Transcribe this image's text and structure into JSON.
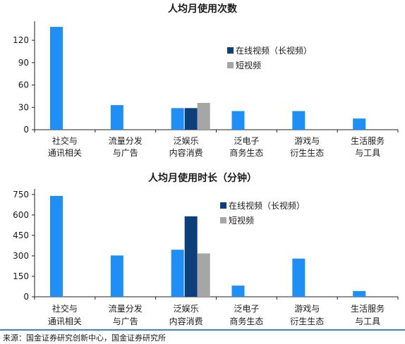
{
  "colors": {
    "primary": "#1f8ff5",
    "online_video": "#0d3f7a",
    "short_video": "#a6a6a6",
    "axis": "#222222",
    "source_rule": "#3a86c8"
  },
  "source": "来源：国金证券研究创新中心，国金证券研究所",
  "chart_data": [
    {
      "type": "bar",
      "title": "人均月使用次数",
      "categories": [
        [
          "社交与",
          "通讯相关"
        ],
        [
          "流量分发",
          "与广告"
        ],
        [
          "泛娱乐",
          "内容消费"
        ],
        [
          "泛电子",
          "商务生态"
        ],
        [
          "游戏与",
          "衍生生态"
        ],
        [
          "生活服务",
          "与工具"
        ]
      ],
      "yticks": [
        0,
        30,
        60,
        90,
        120
      ],
      "ylim": [
        0,
        140
      ],
      "series": [
        {
          "values": [
            138,
            33,
            29,
            25,
            25,
            15
          ]
        },
        {
          "name": "在线视频（长视频）",
          "category_index": 2,
          "value": 29
        },
        {
          "name": "短视频",
          "category_index": 2,
          "value": 36
        }
      ]
    },
    {
      "type": "bar",
      "title": "人均月使用时长（分钟）",
      "categories": [
        [
          "社交与",
          "通讯相关"
        ],
        [
          "流量分发",
          "与广告"
        ],
        [
          "泛娱乐",
          "内容消费"
        ],
        [
          "泛电子",
          "商务生态"
        ],
        [
          "游戏与",
          "衍生生态"
        ],
        [
          "生活服务",
          "与工具"
        ]
      ],
      "yticks": [
        0,
        150,
        300,
        450,
        600,
        750
      ],
      "ylim": [
        0,
        760
      ],
      "series": [
        {
          "values": [
            740,
            303,
            345,
            82,
            280,
            42
          ]
        },
        {
          "name": "在线视频（长视频）",
          "category_index": 2,
          "value": 590
        },
        {
          "name": "短视频",
          "category_index": 2,
          "value": 318
        }
      ]
    }
  ]
}
